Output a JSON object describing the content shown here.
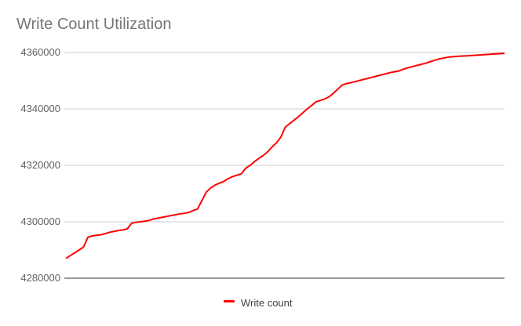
{
  "chart_data": {
    "type": "line",
    "title": "Write Count Utilization",
    "xlabel": "",
    "ylabel": "",
    "ylim": [
      4280000,
      4360000
    ],
    "y_ticks": [
      "4280000",
      "4300000",
      "4320000",
      "4340000",
      "4360000"
    ],
    "grid": true,
    "legend_position": "bottom",
    "series": [
      {
        "name": "Write count",
        "color": "#ff0000",
        "x": [
          0,
          1,
          2,
          3,
          4,
          5,
          6,
          7,
          8,
          9,
          10,
          11,
          12,
          13,
          14,
          15,
          16,
          17,
          18,
          19,
          20,
          21,
          22,
          23,
          24,
          25,
          26,
          27,
          28,
          29,
          30,
          31,
          32,
          33,
          34,
          35,
          36,
          37,
          38,
          39,
          40,
          41,
          42,
          43,
          44,
          45,
          46,
          47,
          48,
          49,
          50,
          51,
          52,
          53,
          54,
          55,
          56,
          57,
          58,
          59,
          60,
          61,
          62,
          63,
          64,
          65,
          66,
          67,
          68,
          69,
          70,
          71,
          72,
          73,
          74,
          75,
          76,
          77,
          78,
          79,
          80,
          81,
          82,
          83,
          84,
          85,
          86,
          87,
          88,
          89,
          90,
          91,
          92,
          93,
          94,
          95,
          96,
          97,
          98,
          99,
          100
        ],
        "values": [
          4287000,
          4288000,
          4289000,
          4290000,
          4291000,
          4294500,
          4295000,
          4295200,
          4295400,
          4295800,
          4296300,
          4296600,
          4296900,
          4297100,
          4297500,
          4299500,
          4299800,
          4300000,
          4300200,
          4300500,
          4301000,
          4301300,
          4301600,
          4301900,
          4302200,
          4302500,
          4302800,
          4303000,
          4303300,
          4304000,
          4304500,
          4307500,
          4310500,
          4312000,
          4313000,
          4313700,
          4314300,
          4315300,
          4316000,
          4316500,
          4317000,
          4319000,
          4320000,
          4321300,
          4322500,
          4323500,
          4324800,
          4326500,
          4328000,
          4330000,
          4333500,
          4334800,
          4336000,
          4337200,
          4338600,
          4340000,
          4341200,
          4342500,
          4343000,
          4343500,
          4344300,
          4345600,
          4347000,
          4348500,
          4349000,
          4349300,
          4349700,
          4350100,
          4350500,
          4350900,
          4351300,
          4351700,
          4352100,
          4352500,
          4352900,
          4353200,
          4353500,
          4354100,
          4354600,
          4355000,
          4355400,
          4355800,
          4356200,
          4356700,
          4357200,
          4357700,
          4358000,
          4358300,
          4358500,
          4358600,
          4358700,
          4358800,
          4358900,
          4359000,
          4359100,
          4359200,
          4359300,
          4359400,
          4359500,
          4359600,
          4359700
        ]
      }
    ]
  }
}
